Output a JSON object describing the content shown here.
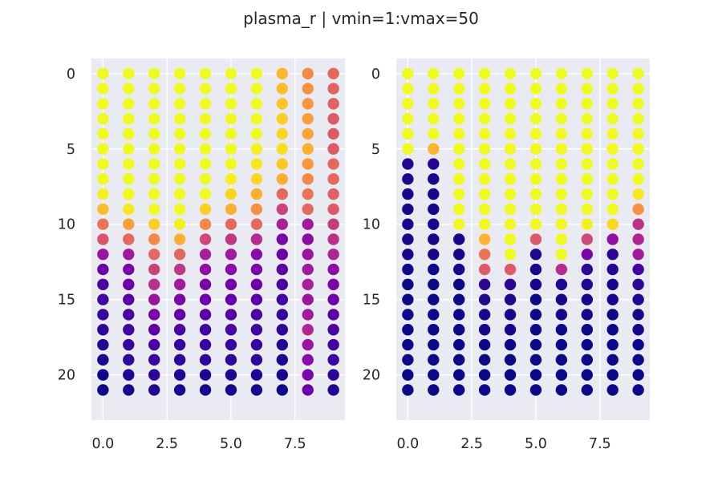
{
  "figure": {
    "title": "plasma_r | vmin=1:vmax=50"
  },
  "chart_data": [
    {
      "type": "scatter",
      "title": "",
      "xlim": [
        -0.45,
        9.45
      ],
      "ylim": [
        23,
        -1
      ],
      "x_ticks": [
        0.0,
        2.5,
        5.0,
        7.5
      ],
      "x_tick_labels": [
        "0.0",
        "2.5",
        "5.0",
        "7.5"
      ],
      "y_ticks": [
        0,
        5,
        10,
        15,
        20
      ],
      "y_tick_labels": [
        "0",
        "5",
        "10",
        "15",
        "20"
      ],
      "grid": true,
      "colormap": "plasma_r",
      "vmin": 1,
      "vmax": 50,
      "x": [
        0,
        1,
        2,
        3,
        4,
        5,
        6,
        7,
        8,
        9
      ],
      "rows": 22,
      "values_by_column": [
        [
          1,
          1,
          1,
          1,
          1,
          1,
          1,
          1,
          2,
          8,
          18,
          23,
          34,
          40,
          44,
          45,
          46,
          47,
          48,
          49,
          50,
          50
        ],
        [
          1,
          1,
          1,
          1,
          1,
          1,
          1,
          1,
          1,
          3,
          12,
          20,
          33,
          38,
          40,
          42,
          44,
          45,
          46,
          47,
          48,
          49
        ],
        [
          1,
          1,
          1,
          1,
          1,
          1,
          1,
          1,
          1,
          1,
          6,
          15,
          20,
          26,
          29,
          34,
          38,
          42,
          44,
          46,
          47,
          48
        ],
        [
          1,
          1,
          1,
          1,
          1,
          1,
          1,
          1,
          1,
          1,
          2,
          10,
          20,
          28,
          33,
          38,
          41,
          44,
          46,
          47,
          48,
          49
        ],
        [
          1,
          1,
          1,
          1,
          1,
          1,
          1,
          1,
          1,
          6,
          15,
          25,
          32,
          35,
          38,
          40,
          42,
          45,
          46,
          47,
          48,
          49
        ],
        [
          1,
          1,
          1,
          1,
          1,
          1,
          1,
          2,
          5,
          10,
          20,
          28,
          33,
          36,
          39,
          41,
          43,
          44,
          46,
          47,
          48,
          49
        ],
        [
          1,
          1,
          1,
          1,
          1,
          2,
          3,
          5,
          10,
          14,
          20,
          30,
          36,
          38,
          40,
          42,
          44,
          45,
          46,
          47,
          48,
          49
        ],
        [
          9,
          8,
          7,
          6,
          5,
          4,
          7,
          10,
          20,
          26,
          32,
          38,
          40,
          42,
          44,
          45,
          46,
          47,
          48,
          49,
          49,
          50
        ],
        [
          15,
          14,
          13,
          12,
          11,
          10,
          13,
          15,
          18,
          20,
          33,
          36,
          34,
          33,
          32,
          34,
          33,
          31,
          34,
          36,
          38,
          40
        ],
        [
          20,
          21,
          21,
          22,
          22,
          22,
          20,
          20,
          21,
          22,
          27,
          29,
          31,
          36,
          38,
          40,
          42,
          44,
          45,
          46,
          47,
          48
        ]
      ]
    },
    {
      "type": "scatter",
      "title": "",
      "xlim": [
        -0.45,
        9.45
      ],
      "ylim": [
        23,
        -1
      ],
      "x_ticks": [
        0.0,
        2.5,
        5.0,
        7.5
      ],
      "x_tick_labels": [
        "0.0",
        "2.5",
        "5.0",
        "7.5"
      ],
      "y_ticks": [
        0,
        5,
        10,
        15,
        20
      ],
      "y_tick_labels": [
        "0",
        "5",
        "10",
        "15",
        "20"
      ],
      "grid": true,
      "colormap": "plasma_r",
      "vmin": 1,
      "vmax": 50,
      "x": [
        0,
        1,
        2,
        3,
        4,
        5,
        6,
        7,
        8,
        9
      ],
      "rows": 22,
      "values_by_column": [
        [
          1,
          1,
          1,
          1,
          1,
          1,
          48,
          49,
          49,
          49,
          49,
          49,
          49,
          50,
          50,
          50,
          50,
          50,
          50,
          50,
          50,
          50
        ],
        [
          1,
          1,
          1,
          1,
          1,
          9,
          48,
          49,
          49,
          49,
          49,
          49,
          49,
          50,
          50,
          50,
          50,
          50,
          50,
          50,
          50,
          50
        ],
        [
          1,
          1,
          1,
          1,
          1,
          1,
          1,
          1,
          1,
          1,
          1,
          49,
          49,
          49,
          50,
          50,
          50,
          50,
          50,
          50,
          50,
          50
        ],
        [
          1,
          1,
          1,
          1,
          1,
          1,
          1,
          1,
          1,
          1,
          1,
          9,
          18,
          22,
          47,
          48,
          49,
          49,
          50,
          50,
          50,
          50
        ],
        [
          1,
          1,
          1,
          1,
          1,
          1,
          1,
          1,
          1,
          1,
          1,
          1,
          1,
          22,
          47,
          48,
          49,
          49,
          50,
          50,
          50,
          50
        ],
        [
          1,
          1,
          1,
          1,
          1,
          1,
          1,
          1,
          1,
          1,
          1,
          22,
          48,
          49,
          49,
          50,
          50,
          50,
          50,
          50,
          50,
          50
        ],
        [
          1,
          1,
          1,
          1,
          1,
          1,
          1,
          1,
          1,
          1,
          1,
          1,
          1,
          30,
          48,
          49,
          49,
          50,
          50,
          50,
          50,
          50
        ],
        [
          1,
          1,
          1,
          1,
          1,
          1,
          1,
          1,
          1,
          1,
          2,
          25,
          38,
          47,
          48,
          49,
          49,
          50,
          50,
          50,
          50,
          50
        ],
        [
          1,
          1,
          1,
          1,
          1,
          1,
          1,
          1,
          1,
          1,
          5,
          35,
          47,
          48,
          49,
          49,
          50,
          50,
          50,
          50,
          50,
          50
        ],
        [
          1,
          1,
          1,
          1,
          1,
          1,
          1,
          1,
          3,
          14,
          29,
          31,
          33,
          45,
          47,
          48,
          49,
          49,
          50,
          50,
          50,
          50
        ]
      ]
    }
  ]
}
